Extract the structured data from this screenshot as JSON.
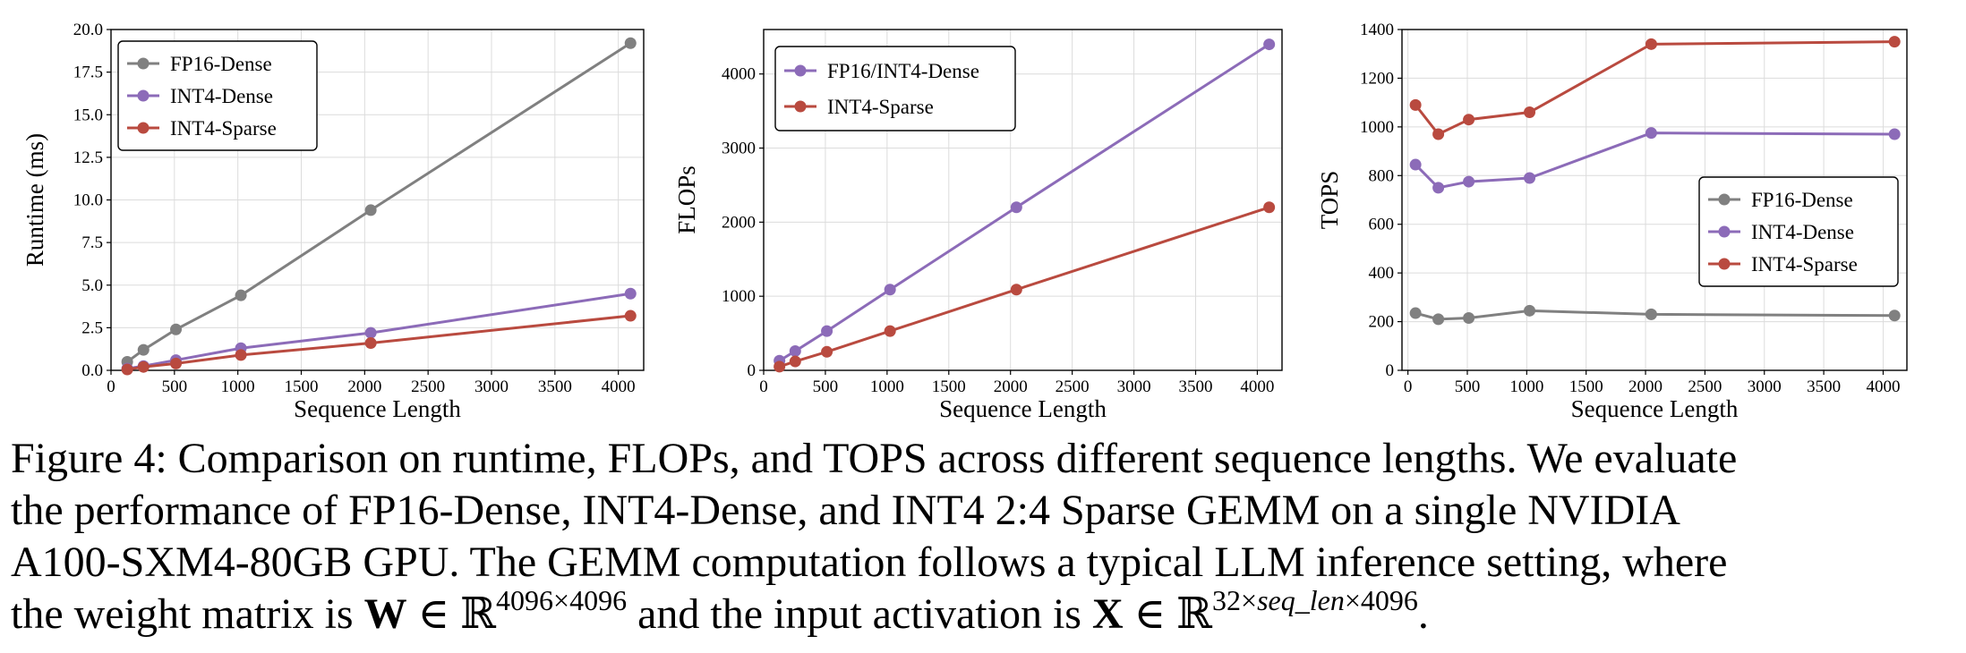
{
  "chart_data": [
    {
      "type": "line",
      "xlabel": "Sequence Length",
      "ylabel": "Runtime (ms)",
      "xlim": [
        0,
        4200
      ],
      "ylim": [
        0,
        20
      ],
      "xticks": [
        0,
        500,
        1000,
        1500,
        2000,
        2500,
        3000,
        3500,
        4000
      ],
      "yticks": [
        0.0,
        2.5,
        5.0,
        7.5,
        10.0,
        12.5,
        15.0,
        17.5,
        20.0
      ],
      "ytick_decimals": 1,
      "grid": true,
      "legend_position": "top-left",
      "series": [
        {
          "name": "FP16-Dense",
          "color": "#808080",
          "x": [
            128,
            256,
            512,
            1024,
            2048,
            4096
          ],
          "y": [
            0.5,
            1.2,
            2.4,
            4.4,
            9.4,
            19.2
          ]
        },
        {
          "name": "INT4-Dense",
          "color": "#8c6bb8",
          "x": [
            128,
            256,
            512,
            1024,
            2048,
            4096
          ],
          "y": [
            0.1,
            0.25,
            0.6,
            1.3,
            2.2,
            4.5
          ]
        },
        {
          "name": "INT4-Sparse",
          "color": "#b94a3f",
          "x": [
            128,
            256,
            512,
            1024,
            2048,
            4096
          ],
          "y": [
            0.05,
            0.2,
            0.4,
            0.9,
            1.6,
            3.2
          ]
        }
      ]
    },
    {
      "type": "line",
      "xlabel": "Sequence Length",
      "ylabel": "FLOPs",
      "xlim": [
        0,
        4200
      ],
      "ylim": [
        0,
        4600
      ],
      "xticks": [
        0,
        500,
        1000,
        1500,
        2000,
        2500,
        3000,
        3500,
        4000
      ],
      "yticks": [
        0,
        1000,
        2000,
        3000,
        4000
      ],
      "ytick_decimals": 0,
      "grid": true,
      "legend_position": "top-left",
      "series": [
        {
          "name": "FP16/INT4-Dense",
          "color": "#8c6bb8",
          "x": [
            128,
            256,
            512,
            1024,
            2048,
            4096
          ],
          "y": [
            130,
            260,
            530,
            1090,
            2200,
            4400
          ]
        },
        {
          "name": "INT4-Sparse",
          "color": "#b94a3f",
          "x": [
            128,
            256,
            512,
            1024,
            2048,
            4096
          ],
          "y": [
            50,
            120,
            250,
            530,
            1090,
            2200
          ]
        }
      ]
    },
    {
      "type": "line",
      "xlabel": "Sequence Length",
      "ylabel": "TOPS",
      "xlim": [
        -50,
        4200
      ],
      "ylim": [
        0,
        1400
      ],
      "xticks": [
        0,
        500,
        1000,
        1500,
        2000,
        2500,
        3000,
        3500,
        4000
      ],
      "yticks": [
        0,
        200,
        400,
        600,
        800,
        1000,
        1200,
        1400
      ],
      "ytick_decimals": 0,
      "grid": true,
      "legend_position": "center-right",
      "series": [
        {
          "name": "FP16-Dense",
          "color": "#808080",
          "x": [
            64,
            256,
            512,
            1024,
            2048,
            4096
          ],
          "y": [
            235,
            210,
            215,
            245,
            230,
            225
          ]
        },
        {
          "name": "INT4-Dense",
          "color": "#8c6bb8",
          "x": [
            64,
            256,
            512,
            1024,
            2048,
            4096
          ],
          "y": [
            845,
            750,
            775,
            790,
            975,
            970
          ]
        },
        {
          "name": "INT4-Sparse",
          "color": "#b94a3f",
          "x": [
            64,
            256,
            512,
            1024,
            2048,
            4096
          ],
          "y": [
            1090,
            970,
            1030,
            1060,
            1340,
            1350
          ]
        }
      ]
    }
  ],
  "caption": {
    "line1": "Figure 4: Comparison on runtime, FLOPs, and TOPS across different sequence lengths. We evaluate",
    "line2": "the performance of FP16-Dense, INT4-Dense, and INT4 2:4 Sparse GEMM on a single NVIDIA",
    "line3": "A100-SXM4-80GB GPU. The GEMM computation follows a typical LLM inference setting, where",
    "line4_a": "the weight matrix is ",
    "weight_symbol": "W",
    "in_real": " ∈ ℝ",
    "weight_dims": "4096×4096",
    "line4_b": " and the input activation is ",
    "input_symbol": "X",
    "input_dims_a": "32×",
    "input_dims_var": "seq_len",
    "input_dims_b": "×4096",
    "line4_end": "."
  }
}
